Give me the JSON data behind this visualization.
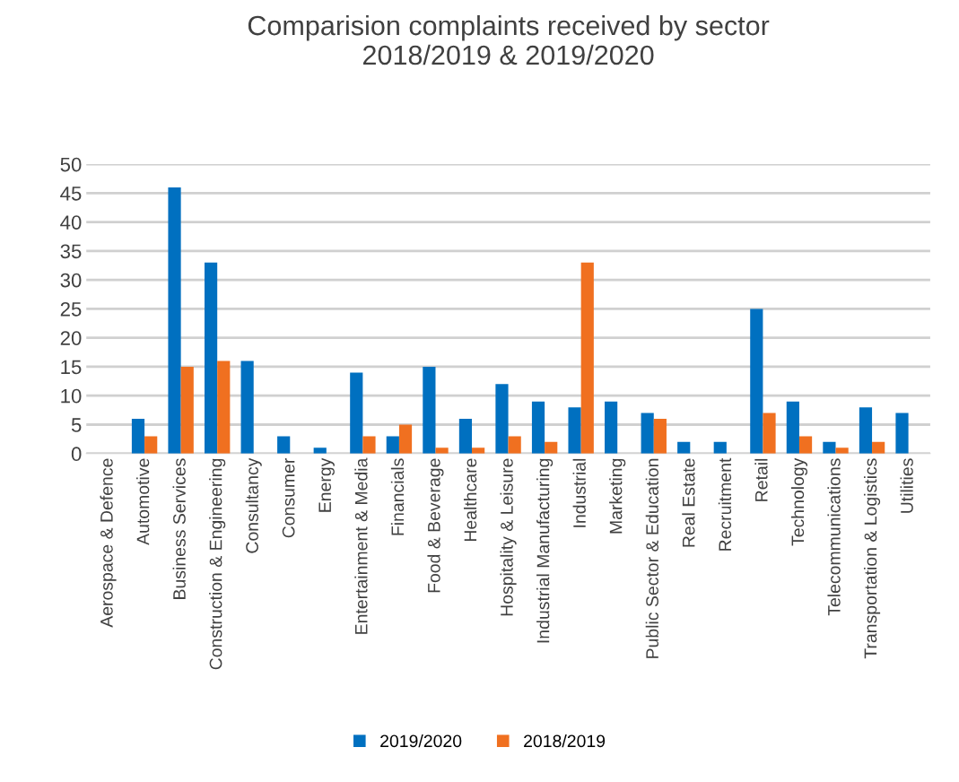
{
  "chart_data": {
    "type": "bar",
    "title": "Comparision complaints received by sector\n2018/2019 & 2019/2020",
    "categories": [
      "Aerospace & Defence",
      "Automotive",
      "Business Services",
      "Construction & Engineering",
      "Consultancy",
      "Consumer",
      "Energy",
      "Entertainment & Media",
      "Financials",
      "Food & Beverage",
      "Healthcare",
      "Hospitality & Leisure",
      "Industrial Manufacturing",
      "Industrial",
      "Marketing",
      "Public Sector & Education",
      "Real Estate",
      "Recruitment",
      "Retail",
      "Technology",
      "Telecommunications",
      "Transportation & Logistics",
      "Utilities"
    ],
    "series": [
      {
        "name": "2019/2020",
        "color": "#0070c0",
        "values": [
          0,
          6,
          46,
          33,
          16,
          3,
          1,
          14,
          3,
          15,
          6,
          12,
          9,
          8,
          9,
          7,
          2,
          2,
          25,
          9,
          2,
          8,
          7
        ]
      },
      {
        "name": "2018/2019",
        "color": "#f07020",
        "values": [
          0,
          3,
          15,
          16,
          0,
          0,
          0,
          3,
          5,
          1,
          1,
          3,
          2,
          33,
          0,
          6,
          0,
          0,
          7,
          3,
          1,
          2,
          0
        ]
      }
    ],
    "ylim": [
      0,
      50
    ],
    "yticks": [
      0,
      5,
      10,
      15,
      20,
      25,
      30,
      35,
      40,
      45,
      50
    ],
    "grid": "y",
    "legend": "bottom"
  }
}
